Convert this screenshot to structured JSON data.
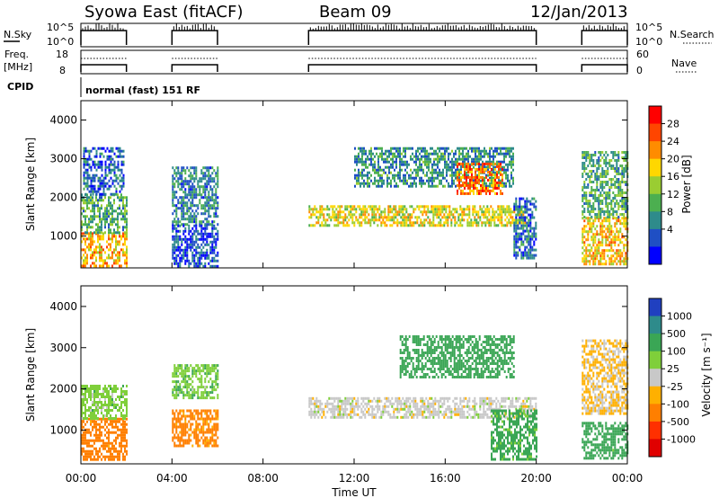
{
  "header": {
    "station": "Syowa East (fitACF)",
    "beam": "Beam 09",
    "date": "12/Jan/2013"
  },
  "status_panels": {
    "nsky_label": "N.Sky",
    "nsky_ticks": [
      "10^5",
      "10^0"
    ],
    "nsearch_label": "N.Search",
    "freq_label_line1": "Freq.",
    "freq_label_line2": "[MHz]",
    "freq_ticks": [
      "18",
      "8"
    ],
    "nave_ticks": [
      "60",
      "0"
    ],
    "nave_label": "Nave",
    "cpid_label": "CPID",
    "cpid_text": "normal (fast) 151 RF"
  },
  "chart_data": [
    {
      "type": "heatmap",
      "name": "power",
      "xlabel": "Time UT",
      "ylabel": "Slant Range [km]",
      "x_ticks": [
        "00:00",
        "04:00",
        "08:00",
        "12:00",
        "16:00",
        "20:00",
        "00:00"
      ],
      "x_tick_hours": [
        0,
        4,
        8,
        12,
        16,
        20,
        24
      ],
      "y_ticks": [
        1000,
        2000,
        3000,
        4000
      ],
      "xlim_hours": [
        0,
        24
      ],
      "ylim_km": [
        180,
        4500
      ],
      "data_intervals_hours": [
        [
          0,
          2
        ],
        [
          4,
          6
        ],
        [
          10,
          20
        ],
        [
          22,
          24
        ]
      ],
      "colorbar": {
        "label": "Power [dB]",
        "ticks": [
          "28",
          "24",
          "20",
          "16",
          "12",
          "8",
          "4"
        ],
        "tick_values": [
          28,
          24,
          20,
          16,
          12,
          8,
          4
        ],
        "range": [
          0,
          30
        ],
        "colors": [
          "#0000ff",
          "#1f4fc4",
          "#2e8b8b",
          "#4caf50",
          "#9acd32",
          "#ffd700",
          "#ff8c00",
          "#ff4500",
          "#ff0000"
        ]
      },
      "echo_regions": [
        {
          "t0": 0.0,
          "t1": 2.0,
          "r0": 250,
          "r1": 1100,
          "level": 20
        },
        {
          "t0": 0.0,
          "t1": 2.0,
          "r0": 1100,
          "r1": 2100,
          "level": 11
        },
        {
          "t0": 0.1,
          "t1": 1.9,
          "r0": 2100,
          "r1": 3300,
          "level": 6
        },
        {
          "t0": 4.0,
          "t1": 6.0,
          "r0": 1300,
          "r1": 2800,
          "level": 8
        },
        {
          "t0": 4.0,
          "t1": 6.0,
          "r0": 250,
          "r1": 1300,
          "level": 5
        },
        {
          "t0": 10.0,
          "t1": 19.5,
          "r0": 1300,
          "r1": 1800,
          "level": 17
        },
        {
          "t0": 12.0,
          "t1": 19.0,
          "r0": 2300,
          "r1": 3300,
          "level": 9
        },
        {
          "t0": 16.5,
          "t1": 18.5,
          "r0": 2100,
          "r1": 2900,
          "level": 23
        },
        {
          "t0": 19.0,
          "t1": 20.0,
          "r0": 400,
          "r1": 2000,
          "level": 7
        },
        {
          "t0": 22.0,
          "t1": 24.0,
          "r0": 300,
          "r1": 1500,
          "level": 19
        },
        {
          "t0": 22.0,
          "t1": 24.0,
          "r0": 1500,
          "r1": 3200,
          "level": 11
        }
      ]
    },
    {
      "type": "heatmap",
      "name": "velocity",
      "xlabel": "Time UT",
      "ylabel": "Slant Range [km]",
      "x_ticks": [
        "00:00",
        "04:00",
        "08:00",
        "12:00",
        "16:00",
        "20:00",
        "00:00"
      ],
      "x_tick_hours": [
        0,
        4,
        8,
        12,
        16,
        20,
        24
      ],
      "y_ticks": [
        1000,
        2000,
        3000,
        4000
      ],
      "xlim_hours": [
        0,
        24
      ],
      "ylim_km": [
        180,
        4500
      ],
      "data_intervals_hours": [
        [
          0,
          2
        ],
        [
          4,
          6
        ],
        [
          10,
          20
        ],
        [
          22,
          24
        ]
      ],
      "colorbar": {
        "label": "Velocity [m s⁻¹]",
        "ticks": [
          "1000",
          "500",
          "100",
          "25",
          "-25",
          "-100",
          "-500",
          "-1000"
        ],
        "tick_values": [
          1000,
          500,
          100,
          25,
          -25,
          -100,
          -500,
          -1000
        ],
        "colors": [
          "#2040c0",
          "#2e8b8b",
          "#3aa655",
          "#7fcf3a",
          "#c8c8c8",
          "#ffb000",
          "#ff7f00",
          "#ff3000",
          "#e00000"
        ]
      },
      "echo_regions": [
        {
          "t0": 0.0,
          "t1": 2.0,
          "r0": 300,
          "r1": 1300,
          "level": -200
        },
        {
          "t0": 0.0,
          "t1": 2.0,
          "r0": 1300,
          "r1": 2100,
          "level": 60
        },
        {
          "t0": 4.0,
          "t1": 6.0,
          "r0": 600,
          "r1": 1500,
          "level": -150
        },
        {
          "t0": 4.0,
          "t1": 6.0,
          "r0": 1800,
          "r1": 2600,
          "level": 80
        },
        {
          "t0": 10.0,
          "t1": 20.0,
          "r0": 1300,
          "r1": 1800,
          "level": 0
        },
        {
          "t0": 14.0,
          "t1": 19.0,
          "r0": 2300,
          "r1": 3300,
          "level": 300
        },
        {
          "t0": 18.0,
          "t1": 20.0,
          "r0": 300,
          "r1": 1500,
          "level": 150
        },
        {
          "t0": 22.0,
          "t1": 24.0,
          "r0": 300,
          "r1": 1200,
          "level": 200
        },
        {
          "t0": 22.0,
          "t1": 24.0,
          "r0": 1400,
          "r1": 3200,
          "level": -30
        }
      ]
    }
  ]
}
